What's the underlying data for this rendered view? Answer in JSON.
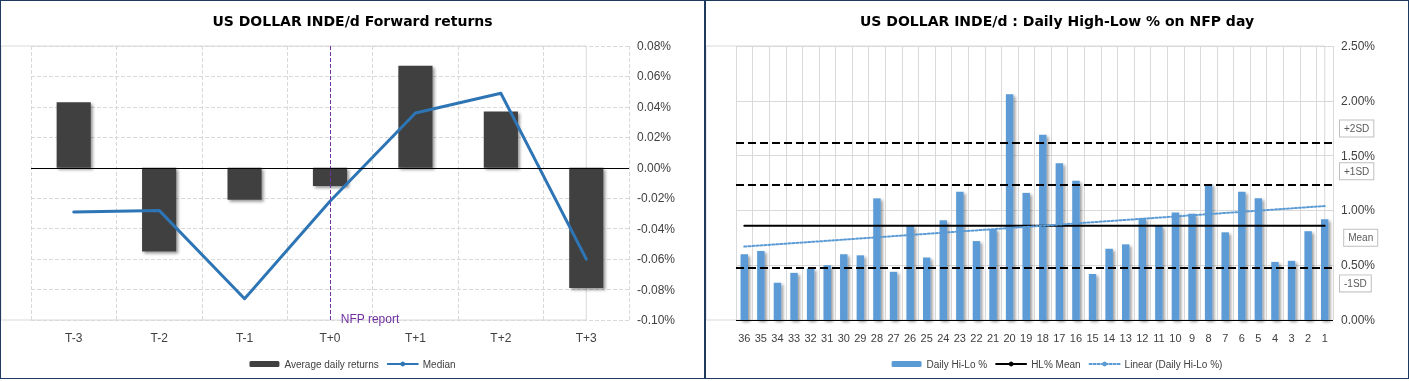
{
  "chart_data": [
    {
      "type": "bar",
      "title": "US DOLLAR INDE/d Forward returns",
      "categories": [
        "T-3",
        "T-2",
        "T-1",
        "T+0",
        "T+1",
        "T+2",
        "T+3"
      ],
      "series": [
        {
          "name": "Average daily returns",
          "color": "#404040",
          "values": [
            0.043,
            -0.055,
            -0.021,
            -0.012,
            0.067,
            0.037,
            -0.079
          ]
        },
        {
          "name": "Median",
          "type": "line",
          "color": "#2e75b6",
          "values": [
            -0.029,
            -0.028,
            -0.086,
            -0.022,
            0.036,
            0.049,
            -0.06
          ]
        }
      ],
      "ylim": [
        -0.1,
        0.08
      ],
      "yticks": [
        {
          "value": -0.1,
          "label": "-0.10%"
        },
        {
          "value": -0.08,
          "label": "-0.08%"
        },
        {
          "value": -0.06,
          "label": "-0.06%"
        },
        {
          "value": -0.04,
          "label": "-0.04%"
        },
        {
          "value": -0.02,
          "label": "-0.02%"
        },
        {
          "value": 0,
          "label": "0.00%"
        },
        {
          "value": 0.02,
          "label": "0.02%"
        },
        {
          "value": 0.04,
          "label": "0.04%"
        },
        {
          "value": 0.06,
          "label": "0.06%"
        },
        {
          "value": 0.08,
          "label": "0.08%"
        }
      ],
      "ref_lines": [
        {
          "axis": "x",
          "value": "T+0",
          "label": "NFP report",
          "color": "#7030a0",
          "line_style": "dashed"
        }
      ],
      "grid": true,
      "legend": "bottom",
      "marker": "none"
    },
    {
      "type": "bar",
      "title": "US DOLLAR INDE/d : Daily High-Low % on NFP day",
      "categories": [
        "36",
        "35",
        "34",
        "33",
        "32",
        "31",
        "30",
        "29",
        "28",
        "27",
        "26",
        "25",
        "24",
        "23",
        "22",
        "21",
        "20",
        "19",
        "18",
        "17",
        "16",
        "15",
        "14",
        "13",
        "12",
        "11",
        "10",
        "9",
        "8",
        "7",
        "6",
        "5",
        "4",
        "3",
        "2",
        "1"
      ],
      "series": [
        {
          "name": "Daily Hi-Lo %",
          "color": "#5b9bd5",
          "values": [
            0.6,
            0.63,
            0.34,
            0.43,
            0.47,
            0.5,
            0.6,
            0.59,
            1.11,
            0.44,
            0.86,
            0.57,
            0.91,
            1.17,
            0.72,
            0.83,
            2.06,
            1.16,
            1.69,
            1.43,
            1.27,
            0.42,
            0.65,
            0.69,
            0.93,
            0.86,
            0.98,
            0.97,
            1.24,
            0.8,
            1.17,
            1.11,
            0.53,
            0.54,
            0.81,
            0.92
          ]
        },
        {
          "name": "HL% Mean",
          "type": "line",
          "color": "#000000",
          "line_style": "solid",
          "values": [
            0.86,
            0.86,
            0.86,
            0.86,
            0.86,
            0.86,
            0.86,
            0.86,
            0.86,
            0.86,
            0.86,
            0.86,
            0.86,
            0.86,
            0.86,
            0.86,
            0.86,
            0.86,
            0.86,
            0.86,
            0.86,
            0.86,
            0.86,
            0.86,
            0.86,
            0.86,
            0.86,
            0.86,
            0.86,
            0.86,
            0.86,
            0.86,
            0.86,
            0.86,
            0.86,
            0.86
          ]
        },
        {
          "name": "Linear (Daily Hi-Lo %)",
          "type": "line",
          "color": "#5b9bd5",
          "line_style": "dotted",
          "x": [
            "36",
            "1"
          ],
          "values": [
            0.67,
            1.04
          ]
        }
      ],
      "ylim": [
        0,
        2.5
      ],
      "yticks": [
        {
          "value": 0,
          "label": "0.00%"
        },
        {
          "value": 0.5,
          "label": "0.50%"
        },
        {
          "value": 1,
          "label": "1.00%"
        },
        {
          "value": 1.5,
          "label": "1.50%"
        },
        {
          "value": 2,
          "label": "2.00%"
        },
        {
          "value": 2.5,
          "label": "2.50%"
        }
      ],
      "ref_lines": [
        {
          "axis": "y",
          "value": 1.62,
          "label": "+2SD",
          "color": "#000000",
          "line_style": "dashed"
        },
        {
          "axis": "y",
          "value": 1.23,
          "label": "+1SD",
          "color": "#000000",
          "line_style": "dashed"
        },
        {
          "axis": "y",
          "value": 0.48,
          "label": "-1SD",
          "color": "#000000",
          "line_style": "dashed"
        }
      ],
      "annotations": [
        {
          "text": "Mean",
          "x": "1",
          "y": 0.86
        }
      ],
      "grid": true,
      "legend": "bottom",
      "marker": "none"
    }
  ]
}
